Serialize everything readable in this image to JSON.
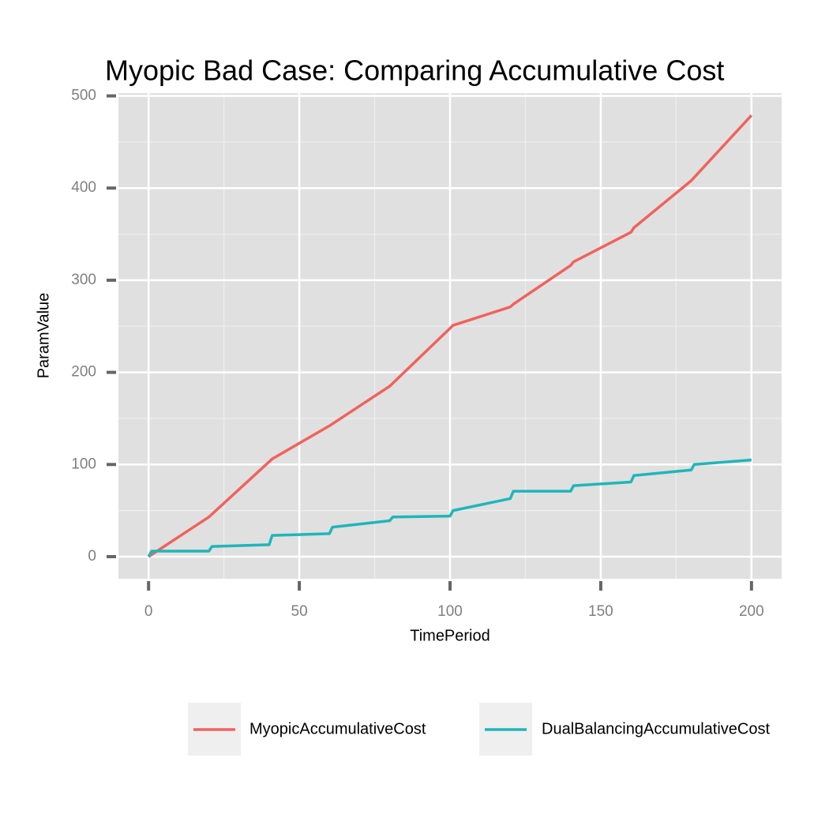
{
  "chart_data": {
    "type": "line",
    "title": "Myopic Bad Case: Comparing Accumulative Cost",
    "x_label": "TimePeriod",
    "y_label": "ParamValue",
    "xlim": [
      -10,
      210
    ],
    "ylim": [
      -24,
      503
    ],
    "xticks": [
      0,
      50,
      100,
      150,
      200
    ],
    "yticks": [
      0,
      100,
      200,
      300,
      400,
      500
    ],
    "grid": true,
    "legend": "bottom",
    "series": [
      {
        "name": "MyopicAccumulativeCost",
        "color": "#f0625d",
        "x": [
          0,
          20,
          41,
          60,
          80,
          101,
          120,
          121,
          140,
          141,
          160,
          161,
          180,
          200
        ],
        "values": [
          0,
          43,
          106,
          142,
          185,
          251,
          271,
          274,
          316,
          320,
          352,
          357,
          408,
          479
        ]
      },
      {
        "name": "DualBalancingAccumulativeCost",
        "color": "#1fb6b9",
        "x": [
          0,
          1,
          20,
          21,
          40,
          41,
          60,
          61,
          80,
          81,
          100,
          101,
          120,
          121,
          140,
          141,
          160,
          161,
          180,
          181,
          200
        ],
        "values": [
          0,
          6,
          6,
          11,
          13,
          23,
          25,
          32,
          39,
          43,
          44,
          50,
          63,
          71,
          71,
          77,
          81,
          88,
          94,
          100,
          105
        ]
      }
    ]
  }
}
